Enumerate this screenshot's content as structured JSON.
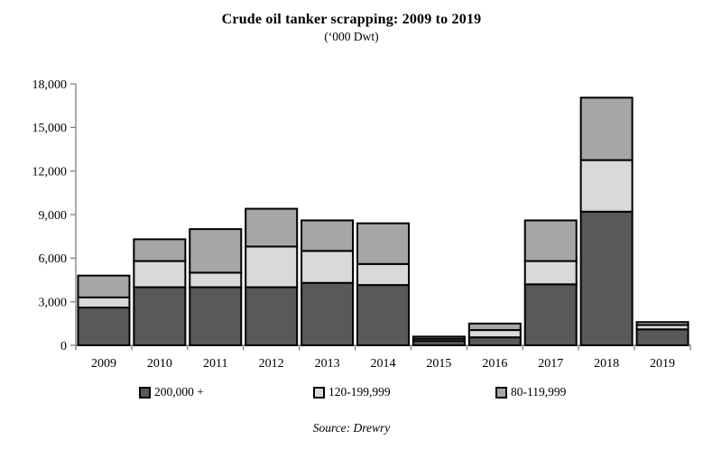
{
  "page": {
    "background": "#ffffff"
  },
  "chart_data": {
    "type": "bar",
    "stacked": true,
    "title": "Crude oil tanker scrapping: 2009 to 2019",
    "subtitle": "(‘000 Dwt)",
    "categories": [
      "2009",
      "2010",
      "2011",
      "2012",
      "2013",
      "2014",
      "2015",
      "2016",
      "2017",
      "2018",
      "2019"
    ],
    "series": [
      {
        "name": "200,000 +",
        "color": "#595959",
        "values": [
          2600,
          4000,
          4000,
          4000,
          4300,
          4150,
          300,
          550,
          4200,
          9200,
          1100
        ]
      },
      {
        "name": "120-199,999",
        "color": "#d9d9d9",
        "values": [
          700,
          1800,
          1000,
          2800,
          2200,
          1450,
          150,
          500,
          1600,
          3550,
          300
        ]
      },
      {
        "name": "80-119,999",
        "color": "#a6a6a6",
        "values": [
          1500,
          1500,
          3000,
          2600,
          2100,
          2800,
          150,
          450,
          2800,
          4300,
          200
        ]
      }
    ],
    "totals": [
      4800,
      7300,
      8000,
      9400,
      8600,
      8400,
      600,
      1500,
      8600,
      17050,
      1600
    ],
    "ylim": [
      0,
      18000
    ],
    "ytick_interval": 3000,
    "ytick_labels": [
      "0",
      "3,000",
      "6,000",
      "9,000",
      "12,000",
      "15,000",
      "18,000"
    ],
    "grid": false,
    "legend_position": "bottom",
    "bar_border_color": "#000000",
    "axis_color": "#808080",
    "source": "Source: Drewry"
  }
}
